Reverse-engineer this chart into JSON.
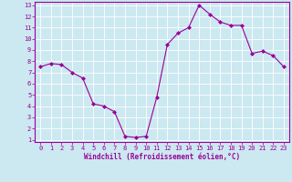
{
  "x": [
    0,
    1,
    2,
    3,
    4,
    5,
    6,
    7,
    8,
    9,
    10,
    11,
    12,
    13,
    14,
    15,
    16,
    17,
    18,
    19,
    20,
    21,
    22,
    23
  ],
  "y": [
    7.5,
    7.8,
    7.7,
    7.0,
    6.5,
    4.2,
    4.0,
    3.5,
    1.3,
    1.2,
    1.3,
    4.8,
    9.5,
    10.5,
    11.0,
    13.0,
    12.2,
    11.5,
    11.2,
    11.2,
    8.7,
    8.9,
    8.5,
    7.5
  ],
  "line_color": "#990099",
  "marker": "D",
  "marker_size": 2,
  "bg_color": "#cce8f0",
  "grid_color": "#ffffff",
  "xlabel": "Windchill (Refroidissement éolien,°C)",
  "xlim": [
    -0.5,
    23.5
  ],
  "ylim": [
    0.8,
    13.3
  ],
  "yticks": [
    1,
    2,
    3,
    4,
    5,
    6,
    7,
    8,
    9,
    10,
    11,
    12,
    13
  ],
  "xticks": [
    0,
    1,
    2,
    3,
    4,
    5,
    6,
    7,
    8,
    9,
    10,
    11,
    12,
    13,
    14,
    15,
    16,
    17,
    18,
    19,
    20,
    21,
    22,
    23
  ],
  "tick_color": "#990099",
  "label_color": "#990099",
  "axis_color": "#990099",
  "tick_fontsize": 5,
  "xlabel_fontsize": 5.5
}
